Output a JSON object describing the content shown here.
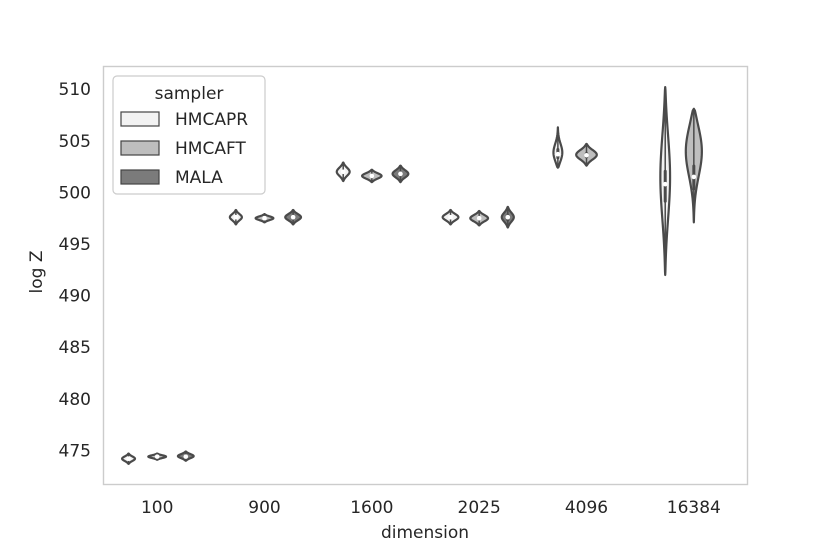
{
  "chart_data": {
    "type": "violin",
    "xlabel": "dimension",
    "ylabel": "log Z",
    "categories": [
      "100",
      "900",
      "1600",
      "2025",
      "4096",
      "16384"
    ],
    "yticks": [
      475,
      480,
      485,
      490,
      495,
      500,
      505,
      510
    ],
    "ylim": [
      471.7,
      512.2
    ],
    "grid": false,
    "legend": {
      "title": "sampler",
      "position": "top-left"
    },
    "series": [
      {
        "name": "HMCAPR",
        "color": "#f2f2f2",
        "violins": [
          {
            "category": "100",
            "min": 473.7,
            "max": 474.7,
            "median": 474.2,
            "q1": 474.1,
            "q3": 474.3,
            "width": 0.45,
            "skew": 0
          },
          {
            "category": "900",
            "min": 496.9,
            "max": 498.3,
            "median": 497.6,
            "q1": 497.4,
            "q3": 497.8,
            "width": 0.42,
            "skew": 0
          },
          {
            "category": "1600",
            "min": 501.1,
            "max": 502.9,
            "median": 502.0,
            "q1": 501.8,
            "q3": 502.2,
            "width": 0.45,
            "skew": 0
          },
          {
            "category": "2025",
            "min": 496.9,
            "max": 498.3,
            "median": 497.6,
            "q1": 497.4,
            "q3": 497.8,
            "width": 0.55,
            "skew": 0
          },
          {
            "category": "4096",
            "min": 502.4,
            "max": 506.3,
            "median": 503.7,
            "q1": 503.2,
            "q3": 504.3,
            "width": 0.32,
            "skew": -0.3
          },
          {
            "category": "16384",
            "min": 492.0,
            "max": 510.2,
            "median": 500.8,
            "q1": 499.0,
            "q3": 502.2,
            "width": 0.34,
            "skew": 0.05
          }
        ]
      },
      {
        "name": "HMCAFT",
        "color": "#bebebe",
        "violins": [
          {
            "category": "100",
            "min": 474.1,
            "max": 474.7,
            "median": 474.4,
            "q1": 474.3,
            "q3": 474.5,
            "width": 0.62,
            "skew": 0
          },
          {
            "category": "900",
            "min": 497.1,
            "max": 497.9,
            "median": 497.5,
            "q1": 497.4,
            "q3": 497.6,
            "width": 0.62,
            "skew": 0
          },
          {
            "category": "1600",
            "min": 501.0,
            "max": 502.2,
            "median": 501.6,
            "q1": 501.5,
            "q3": 501.8,
            "width": 0.68,
            "skew": 0
          },
          {
            "category": "2025",
            "min": 496.8,
            "max": 498.2,
            "median": 497.5,
            "q1": 497.3,
            "q3": 497.7,
            "width": 0.62,
            "skew": 0
          },
          {
            "category": "4096",
            "min": 502.6,
            "max": 504.7,
            "median": 503.6,
            "q1": 503.3,
            "q3": 503.9,
            "width": 0.72,
            "skew": 0
          },
          {
            "category": "16384",
            "min": 497.1,
            "max": 508.1,
            "median": 501.5,
            "q1": 500.2,
            "q3": 502.7,
            "width": 0.58,
            "skew": 0.3
          }
        ]
      },
      {
        "name": "MALA",
        "color": "#7b7b7b",
        "violins": [
          {
            "category": "100",
            "min": 474.0,
            "max": 474.9,
            "median": 474.4,
            "q1": 474.3,
            "q3": 474.6,
            "width": 0.55,
            "skew": 0
          },
          {
            "category": "900",
            "min": 496.9,
            "max": 498.3,
            "median": 497.6,
            "q1": 497.4,
            "q3": 497.8,
            "width": 0.55,
            "skew": 0
          },
          {
            "category": "1600",
            "min": 501.0,
            "max": 502.6,
            "median": 501.8,
            "q1": 501.6,
            "q3": 502.0,
            "width": 0.55,
            "skew": 0
          },
          {
            "category": "2025",
            "min": 496.6,
            "max": 498.6,
            "median": 497.6,
            "q1": 497.2,
            "q3": 497.9,
            "width": 0.42,
            "skew": 0
          }
        ]
      }
    ]
  },
  "legend": {
    "title": "sampler",
    "items": [
      {
        "label": "HMCAPR",
        "color": "#f2f2f2"
      },
      {
        "label": "HMCAFT",
        "color": "#bebebe"
      },
      {
        "label": "MALA",
        "color": "#7b7b7b"
      }
    ]
  }
}
